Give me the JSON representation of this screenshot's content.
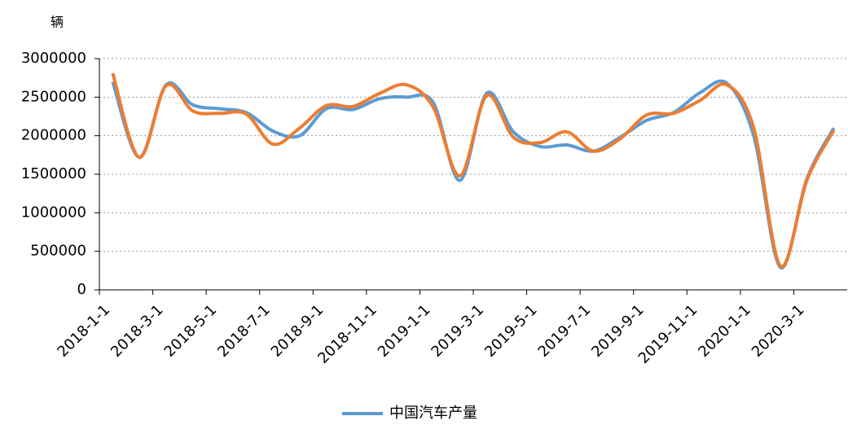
{
  "chart_data": {
    "type": "line",
    "y_unit": "辆",
    "categories": [
      "2018-1-1",
      null,
      "2018-3-1",
      null,
      "2018-5-1",
      null,
      "2018-7-1",
      null,
      "2018-9-1",
      null,
      "2018-11-1",
      null,
      "2019-1-1",
      null,
      "2019-3-1",
      null,
      "2019-5-1",
      null,
      "2019-7-1",
      null,
      "2019-9-1",
      null,
      "2019-11-1",
      null,
      "2020-1-1",
      null,
      "2020-3-1",
      null
    ],
    "series": [
      {
        "name": "中国汽车产量",
        "color": "#5b9bd5",
        "values": [
          2700000,
          1720000,
          2660000,
          2400000,
          2350000,
          2300000,
          2060000,
          2000000,
          2350000,
          2340000,
          2480000,
          2500000,
          2430000,
          1420000,
          2550000,
          2050000,
          1860000,
          1880000,
          1800000,
          1980000,
          2200000,
          2300000,
          2560000,
          2680000,
          2000000,
          290000,
          1450000,
          2100000
        ]
      },
      {
        "color": "#ed7d31",
        "values": [
          2810000,
          1720000,
          2650000,
          2320000,
          2290000,
          2280000,
          1890000,
          2100000,
          2390000,
          2380000,
          2550000,
          2660000,
          2370000,
          1480000,
          2520000,
          1980000,
          1910000,
          2050000,
          1800000,
          1960000,
          2270000,
          2290000,
          2460000,
          2660000,
          2100000,
          310000,
          1430000,
          2070000
        ]
      }
    ],
    "ylim": [
      0,
      3000000
    ],
    "yticks": [
      0,
      500000,
      1000000,
      1500000,
      2000000,
      2500000,
      3000000
    ],
    "grid": true
  }
}
